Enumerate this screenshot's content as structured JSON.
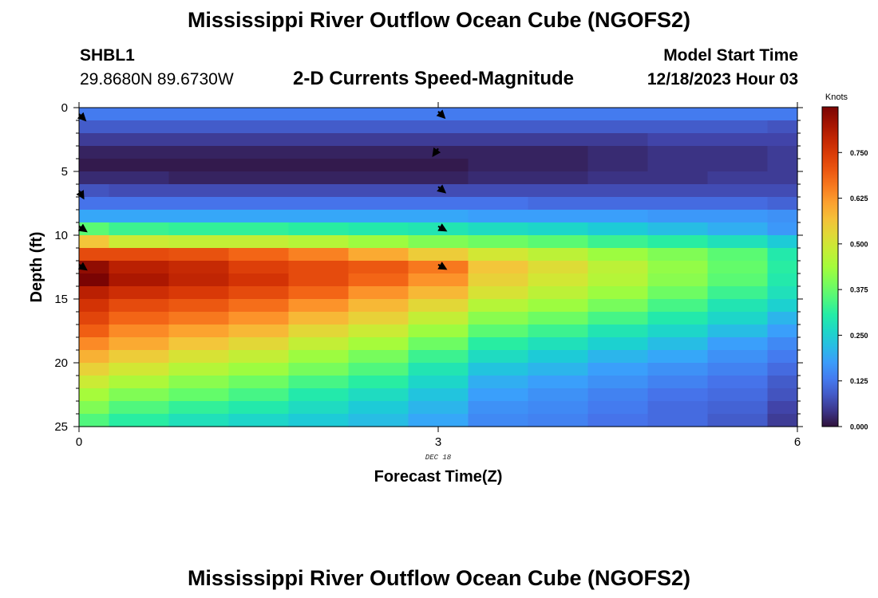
{
  "header": {
    "title": "Mississippi River Outflow Ocean Cube (NGOFS2)",
    "station_id": "SHBL1",
    "station_coords": "29.8680N  89.6730W",
    "chart_subtitle": "2-D Currents Speed-Magnitude",
    "model_start_label": "Model Start Time",
    "model_start_value": "12/18/2023 Hour 03"
  },
  "footer": {
    "title_repeat": "Mississippi River Outflow Ocean Cube (NGOFS2)"
  },
  "chart_data": {
    "type": "heatmap",
    "title": "2-D Currents Speed-Magnitude",
    "xlabel": "Forecast Time(Z)",
    "ylabel": "Depth (ft)",
    "x_tick_labels": [
      "0",
      "3",
      "6"
    ],
    "x_ticks": [
      0,
      3,
      6
    ],
    "x_sublabel": "DEC 18",
    "xlim": [
      0,
      6
    ],
    "y_tick_labels": [
      "0",
      "5",
      "10",
      "15",
      "20",
      "25"
    ],
    "y_ticks": [
      0,
      5,
      10,
      15,
      20,
      25
    ],
    "ylim": [
      0,
      25
    ],
    "y_inverted": true,
    "colorbar": {
      "label": "Knots",
      "min": 0,
      "max": 0.875,
      "tick_labels": [
        "0.000",
        "0.125",
        "0.250",
        "0.375",
        "0.500",
        "0.625",
        "0.750"
      ],
      "ticks": [
        0,
        0.125,
        0.25,
        0.375,
        0.5,
        0.625,
        0.75
      ]
    },
    "time_columns": [
      0,
      0.5,
      1,
      1.5,
      2,
      2.5,
      3,
      3.5,
      4,
      4.5,
      5,
      5.5,
      6
    ],
    "depth_rows": [
      0.5,
      1.5,
      2.5,
      3.5,
      4.5,
      5.5,
      6.5,
      7.5,
      8.5,
      9.5,
      10.5,
      11.5,
      12.5,
      13.5,
      14.5,
      15.5,
      16.5,
      17.5,
      18.5,
      19.5,
      20.5,
      21.5,
      22.5,
      23.5,
      24.5
    ],
    "speed": [
      [
        0.13,
        0.13,
        0.13,
        0.13,
        0.13,
        0.13,
        0.13,
        0.13,
        0.13,
        0.13,
        0.13,
        0.13,
        0.13
      ],
      [
        0.09,
        0.09,
        0.09,
        0.09,
        0.09,
        0.09,
        0.09,
        0.09,
        0.09,
        0.09,
        0.09,
        0.09,
        0.08
      ],
      [
        0.05,
        0.05,
        0.05,
        0.05,
        0.05,
        0.05,
        0.05,
        0.05,
        0.05,
        0.05,
        0.06,
        0.06,
        0.06
      ],
      [
        0.02,
        0.02,
        0.02,
        0.02,
        0.02,
        0.02,
        0.02,
        0.02,
        0.02,
        0.03,
        0.04,
        0.04,
        0.05
      ],
      [
        0.01,
        0.01,
        0.01,
        0.01,
        0.01,
        0.01,
        0.01,
        0.02,
        0.02,
        0.03,
        0.04,
        0.04,
        0.05
      ],
      [
        0.03,
        0.03,
        0.02,
        0.02,
        0.02,
        0.02,
        0.02,
        0.03,
        0.03,
        0.04,
        0.04,
        0.05,
        0.05
      ],
      [
        0.08,
        0.07,
        0.07,
        0.07,
        0.07,
        0.07,
        0.07,
        0.07,
        0.07,
        0.07,
        0.07,
        0.07,
        0.07
      ],
      [
        0.12,
        0.12,
        0.12,
        0.12,
        0.12,
        0.12,
        0.12,
        0.12,
        0.11,
        0.11,
        0.11,
        0.11,
        0.1
      ],
      [
        0.19,
        0.19,
        0.19,
        0.19,
        0.19,
        0.19,
        0.19,
        0.18,
        0.18,
        0.18,
        0.17,
        0.17,
        0.16
      ],
      [
        0.36,
        0.33,
        0.32,
        0.32,
        0.31,
        0.3,
        0.29,
        0.27,
        0.26,
        0.24,
        0.22,
        0.2,
        0.17
      ],
      [
        0.56,
        0.49,
        0.48,
        0.48,
        0.46,
        0.43,
        0.4,
        0.38,
        0.36,
        0.33,
        0.31,
        0.28,
        0.24
      ],
      [
        0.72,
        0.72,
        0.71,
        0.68,
        0.65,
        0.6,
        0.55,
        0.5,
        0.47,
        0.43,
        0.4,
        0.36,
        0.3
      ],
      [
        0.85,
        0.8,
        0.78,
        0.74,
        0.72,
        0.7,
        0.66,
        0.56,
        0.52,
        0.47,
        0.42,
        0.37,
        0.31
      ],
      [
        0.88,
        0.82,
        0.79,
        0.76,
        0.72,
        0.68,
        0.63,
        0.54,
        0.5,
        0.46,
        0.41,
        0.36,
        0.3
      ],
      [
        0.8,
        0.77,
        0.75,
        0.72,
        0.68,
        0.63,
        0.58,
        0.51,
        0.47,
        0.43,
        0.38,
        0.33,
        0.28
      ],
      [
        0.76,
        0.72,
        0.7,
        0.67,
        0.63,
        0.58,
        0.53,
        0.46,
        0.43,
        0.39,
        0.34,
        0.29,
        0.25
      ],
      [
        0.73,
        0.68,
        0.66,
        0.63,
        0.58,
        0.54,
        0.48,
        0.41,
        0.38,
        0.34,
        0.3,
        0.26,
        0.21
      ],
      [
        0.69,
        0.64,
        0.61,
        0.58,
        0.53,
        0.49,
        0.43,
        0.36,
        0.33,
        0.29,
        0.26,
        0.22,
        0.18
      ],
      [
        0.64,
        0.6,
        0.56,
        0.53,
        0.48,
        0.44,
        0.38,
        0.31,
        0.28,
        0.25,
        0.22,
        0.18,
        0.15
      ],
      [
        0.59,
        0.55,
        0.51,
        0.48,
        0.43,
        0.39,
        0.33,
        0.27,
        0.24,
        0.21,
        0.19,
        0.16,
        0.13
      ],
      [
        0.54,
        0.5,
        0.46,
        0.43,
        0.39,
        0.35,
        0.29,
        0.23,
        0.21,
        0.18,
        0.16,
        0.14,
        0.11
      ],
      [
        0.49,
        0.45,
        0.41,
        0.38,
        0.34,
        0.31,
        0.26,
        0.2,
        0.18,
        0.16,
        0.14,
        0.12,
        0.09
      ],
      [
        0.44,
        0.4,
        0.37,
        0.34,
        0.3,
        0.27,
        0.23,
        0.18,
        0.16,
        0.14,
        0.12,
        0.11,
        0.08
      ],
      [
        0.4,
        0.35,
        0.32,
        0.3,
        0.27,
        0.24,
        0.21,
        0.16,
        0.15,
        0.13,
        0.11,
        0.1,
        0.06
      ],
      [
        0.35,
        0.31,
        0.28,
        0.26,
        0.24,
        0.22,
        0.19,
        0.15,
        0.14,
        0.12,
        0.11,
        0.09,
        0.05
      ]
    ],
    "vectors": [
      {
        "time": 0,
        "depth": 0.5,
        "angle_deg": 45
      },
      {
        "time": 0,
        "depth": 6.5,
        "angle_deg": 60
      },
      {
        "time": 0,
        "depth": 9.3,
        "angle_deg": 35
      },
      {
        "time": 0,
        "depth": 12.3,
        "angle_deg": 35
      },
      {
        "time": 3,
        "depth": 0.3,
        "angle_deg": 45
      },
      {
        "time": 3,
        "depth": 3.2,
        "angle_deg": 125
      },
      {
        "time": 3,
        "depth": 6.2,
        "angle_deg": 40
      },
      {
        "time": 3,
        "depth": 9.3,
        "angle_deg": 30
      },
      {
        "time": 3,
        "depth": 12.3,
        "angle_deg": 30
      }
    ]
  }
}
